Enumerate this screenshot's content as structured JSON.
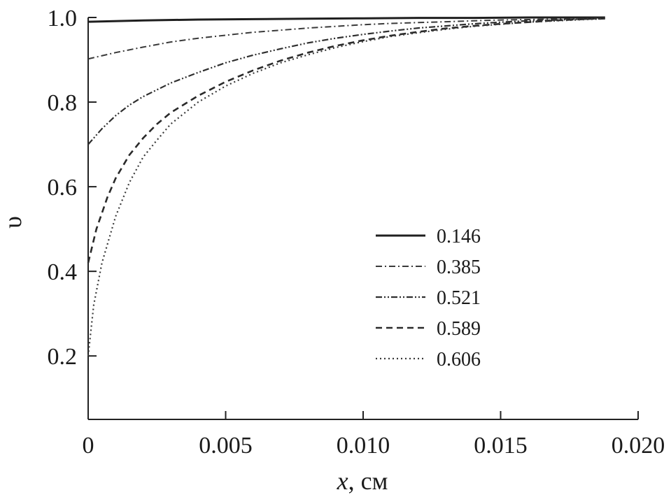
{
  "chart_data": {
    "type": "line",
    "xlabel_var": "x",
    "xlabel_unit": ", см",
    "ylabel": "υ",
    "xlim": [
      0,
      0.02
    ],
    "ylim": [
      0.05,
      1.0
    ],
    "x_ticks": [
      0,
      0.005,
      0.01,
      0.015,
      0.02
    ],
    "x_tick_labels": [
      "0",
      "0.005",
      "0.010",
      "0.015",
      "0.020"
    ],
    "y_ticks": [
      0.2,
      0.4,
      0.6,
      0.8,
      1.0
    ],
    "y_tick_labels": [
      "0.2",
      "0.4",
      "0.6",
      "0.8",
      "1.0"
    ],
    "grid": false,
    "legend_position": "center-right",
    "series": [
      {
        "name": "0.146",
        "style": "solid",
        "x": [
          0,
          0.002,
          0.004,
          0.006,
          0.008,
          0.01,
          0.012,
          0.014,
          0.016,
          0.0188
        ],
        "y": [
          0.99,
          0.993,
          0.995,
          0.996,
          0.997,
          0.998,
          0.999,
          0.999,
          1.0,
          1.0
        ]
      },
      {
        "name": "0.385",
        "style": "dash-dot",
        "x": [
          0,
          0.001,
          0.002,
          0.003,
          0.004,
          0.005,
          0.006,
          0.007,
          0.008,
          0.009,
          0.01,
          0.011,
          0.012,
          0.013,
          0.014,
          0.015,
          0.016,
          0.017,
          0.018,
          0.0188
        ],
        "y": [
          0.902,
          0.917,
          0.93,
          0.942,
          0.951,
          0.958,
          0.965,
          0.97,
          0.975,
          0.979,
          0.983,
          0.986,
          0.988,
          0.99,
          0.992,
          0.994,
          0.995,
          0.996,
          0.997,
          0.998
        ]
      },
      {
        "name": "0.521",
        "style": "dash-dot-dot",
        "x": [
          0,
          0.0005,
          0.001,
          0.0015,
          0.002,
          0.003,
          0.004,
          0.005,
          0.006,
          0.007,
          0.008,
          0.009,
          0.01,
          0.011,
          0.012,
          0.013,
          0.014,
          0.015,
          0.016,
          0.017,
          0.018,
          0.0188
        ],
        "y": [
          0.7,
          0.737,
          0.768,
          0.793,
          0.813,
          0.845,
          0.87,
          0.893,
          0.911,
          0.926,
          0.94,
          0.951,
          0.96,
          0.968,
          0.975,
          0.98,
          0.985,
          0.989,
          0.992,
          0.994,
          0.996,
          0.997
        ]
      },
      {
        "name": "0.589",
        "style": "dashed",
        "x": [
          0,
          0.0003,
          0.0007,
          0.001,
          0.0015,
          0.002,
          0.0025,
          0.003,
          0.004,
          0.005,
          0.006,
          0.007,
          0.008,
          0.009,
          0.01,
          0.011,
          0.012,
          0.013,
          0.014,
          0.015,
          0.016,
          0.017,
          0.018,
          0.0188
        ],
        "y": [
          0.42,
          0.5,
          0.575,
          0.62,
          0.675,
          0.715,
          0.748,
          0.775,
          0.815,
          0.848,
          0.875,
          0.898,
          0.917,
          0.933,
          0.946,
          0.957,
          0.966,
          0.974,
          0.98,
          0.985,
          0.989,
          0.993,
          0.996,
          0.998
        ]
      },
      {
        "name": "0.606",
        "style": "dotted",
        "x": [
          0,
          0.0002,
          0.0005,
          0.001,
          0.0015,
          0.002,
          0.0025,
          0.003,
          0.004,
          0.005,
          0.006,
          0.007,
          0.008,
          0.009,
          0.01,
          0.011,
          0.012,
          0.013,
          0.014,
          0.015,
          0.016,
          0.017,
          0.018,
          0.0188
        ],
        "y": [
          0.2,
          0.32,
          0.42,
          0.53,
          0.61,
          0.67,
          0.71,
          0.748,
          0.8,
          0.838,
          0.868,
          0.893,
          0.912,
          0.929,
          0.943,
          0.955,
          0.964,
          0.972,
          0.979,
          0.984,
          0.989,
          0.992,
          0.995,
          0.997
        ]
      }
    ]
  }
}
